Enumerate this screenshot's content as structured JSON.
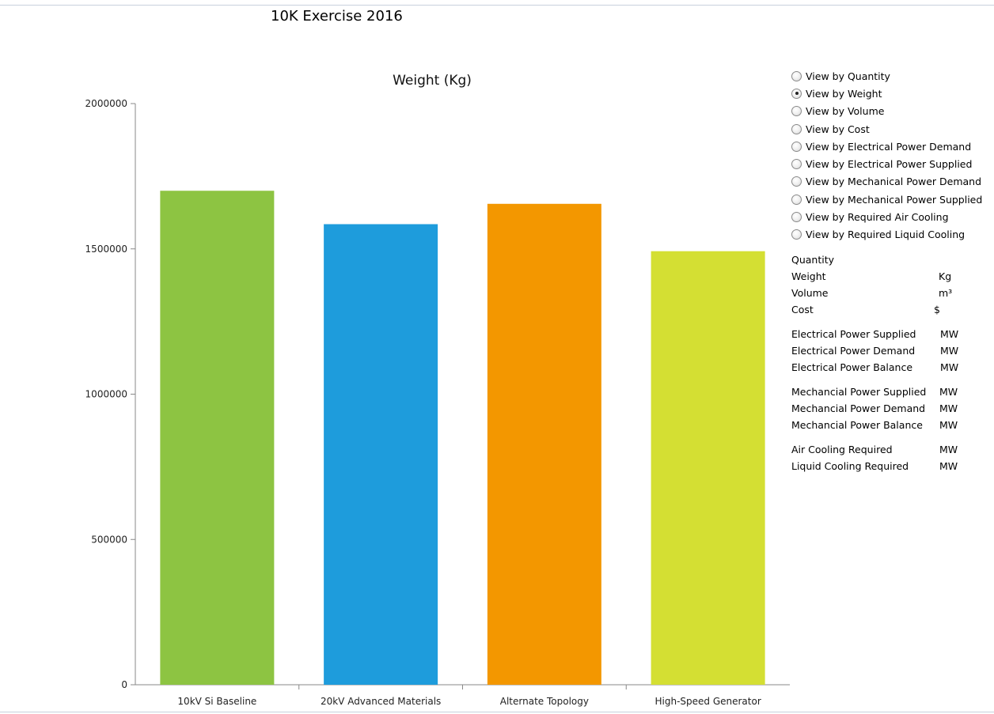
{
  "page": {
    "title": "10K Exercise 2016"
  },
  "view_options": [
    {
      "label": "View by Quantity",
      "checked": false
    },
    {
      "label": "View by Weight",
      "checked": true
    },
    {
      "label": "View by Volume",
      "checked": false
    },
    {
      "label": "View by Cost",
      "checked": false
    },
    {
      "label": "View by Electrical Power Demand",
      "checked": false
    },
    {
      "label": "View by Electrical Power Supplied",
      "checked": false
    },
    {
      "label": "View by Mechanical Power Demand",
      "checked": false
    },
    {
      "label": "View by Mechanical Power Supplied",
      "checked": false
    },
    {
      "label": "View by Required Air Cooling",
      "checked": false
    },
    {
      "label": "View by Required Liquid Cooling",
      "checked": false
    }
  ],
  "summary": {
    "groups": [
      [
        {
          "label": "Quantity",
          "unit": ""
        },
        {
          "label": "Weight",
          "unit": "Kg"
        },
        {
          "label": "Volume",
          "unit": "m³"
        },
        {
          "label": "Cost",
          "unit": "$"
        }
      ],
      [
        {
          "label": "Electrical Power Supplied",
          "unit": "MW"
        },
        {
          "label": "Electrical Power Demand",
          "unit": "MW"
        },
        {
          "label": "Electrical Power Balance",
          "unit": "MW"
        }
      ],
      [
        {
          "label": "Mechancial Power Supplied",
          "unit": "MW"
        },
        {
          "label": "Mechancial Power Demand",
          "unit": "MW"
        },
        {
          "label": "Mechancial Power Balance",
          "unit": "MW"
        }
      ],
      [
        {
          "label": "Air Cooling Required",
          "unit": "MW"
        },
        {
          "label": "Liquid Cooling Required",
          "unit": "MW"
        }
      ]
    ]
  },
  "chart_data": {
    "type": "bar",
    "title": "Weight (Kg)",
    "xlabel": "",
    "ylabel": "",
    "categories": [
      "10kV Si Baseline",
      "20kV Advanced Materials",
      "Alternate Topology",
      "High-Speed Generator"
    ],
    "values": [
      1700000,
      1585000,
      1655000,
      1492000
    ],
    "colors": [
      "#8dc442",
      "#1e9cdc",
      "#f39700",
      "#d4df33"
    ],
    "ylim": [
      0,
      2000000
    ],
    "yticks": [
      0,
      500000,
      1000000,
      1500000,
      2000000
    ],
    "grid": false,
    "legend": "none"
  }
}
